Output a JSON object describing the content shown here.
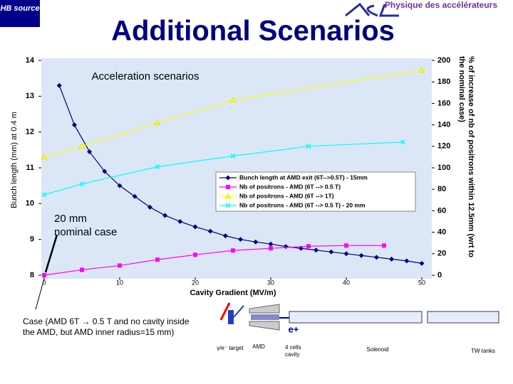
{
  "header": {
    "source": "HB source",
    "title": "Additional Scenarios",
    "lab": "Physique des accélérateurs"
  },
  "chart_data": {
    "type": "line",
    "title": "Acceleration scenarios",
    "x_label": "Cavity Gradient (MV/m)",
    "y_label": "Bunch length (mm) at 0.4 m",
    "y2_label": "% of increase of nb of positrons within 12.5mm (wrt to the nominal case)",
    "xlim": [
      0,
      50
    ],
    "xticks": [
      0,
      10,
      20,
      30,
      40,
      50
    ],
    "ylim": [
      8,
      14
    ],
    "yticks": [
      8,
      9,
      10,
      11,
      12,
      13,
      14
    ],
    "y2lim": [
      0,
      200
    ],
    "y2ticks": [
      0,
      20,
      40,
      60,
      80,
      100,
      120,
      140,
      160,
      180,
      200
    ],
    "legend": "right",
    "series": [
      {
        "name": "Bunch length at AMD exit (6T-->0.5T) - 15mm",
        "color": "#000080",
        "marker": "diamond",
        "x": [
          2,
          4,
          6,
          8,
          10,
          12,
          14,
          16,
          18,
          20,
          22,
          24,
          26,
          28,
          30,
          32,
          34,
          36,
          38,
          40,
          42,
          44,
          46,
          48,
          50
        ],
        "values": [
          13.3,
          12.2,
          11.45,
          10.9,
          10.5,
          10.2,
          9.9,
          9.67,
          9.5,
          9.35,
          9.23,
          9.1,
          9.0,
          8.93,
          8.87,
          8.8,
          8.75,
          8.7,
          8.65,
          8.6,
          8.55,
          8.5,
          8.45,
          8.4,
          8.33
        ]
      },
      {
        "name": "Nb of positrons - AMD (6T --> 0.5 T)",
        "color": "#ff00ff",
        "marker": "square",
        "axis": "y2",
        "x": [
          0,
          5,
          10,
          15,
          20,
          25,
          30,
          35,
          40,
          45
        ],
        "values": [
          0,
          5,
          9,
          14.5,
          19,
          23,
          25,
          27,
          27.6,
          27.6
        ]
      },
      {
        "name": "Nb of positrons - AMD (6T --> 1T)",
        "color": "#ffff00",
        "marker": "triangle",
        "axis": "y2",
        "x": [
          0,
          5,
          15,
          25,
          50
        ],
        "values": [
          110,
          120,
          142,
          163,
          191
        ]
      },
      {
        "name": "Nb of positrons - AMD (6T --> 0.5 T) - 20 mm",
        "color": "#00ffff",
        "marker": "cross",
        "axis": "y2",
        "x": [
          0,
          5,
          15,
          25,
          35,
          47.5
        ],
        "values": [
          75,
          85,
          101,
          111,
          120,
          124
        ]
      }
    ],
    "annotation": "20 mm nominal case"
  },
  "footer": {
    "caption": "Case (AMD 6T → 0.5 T and no cavity inside the AMD, but AMD inner radius=15 mm)",
    "diagram": {
      "target": "γ/e⁻ target",
      "amd": "AMD",
      "particle": "e+",
      "cavity": "4 cells cavity",
      "solenoid": "Solenoid",
      "tanks": "TW tanks"
    }
  }
}
